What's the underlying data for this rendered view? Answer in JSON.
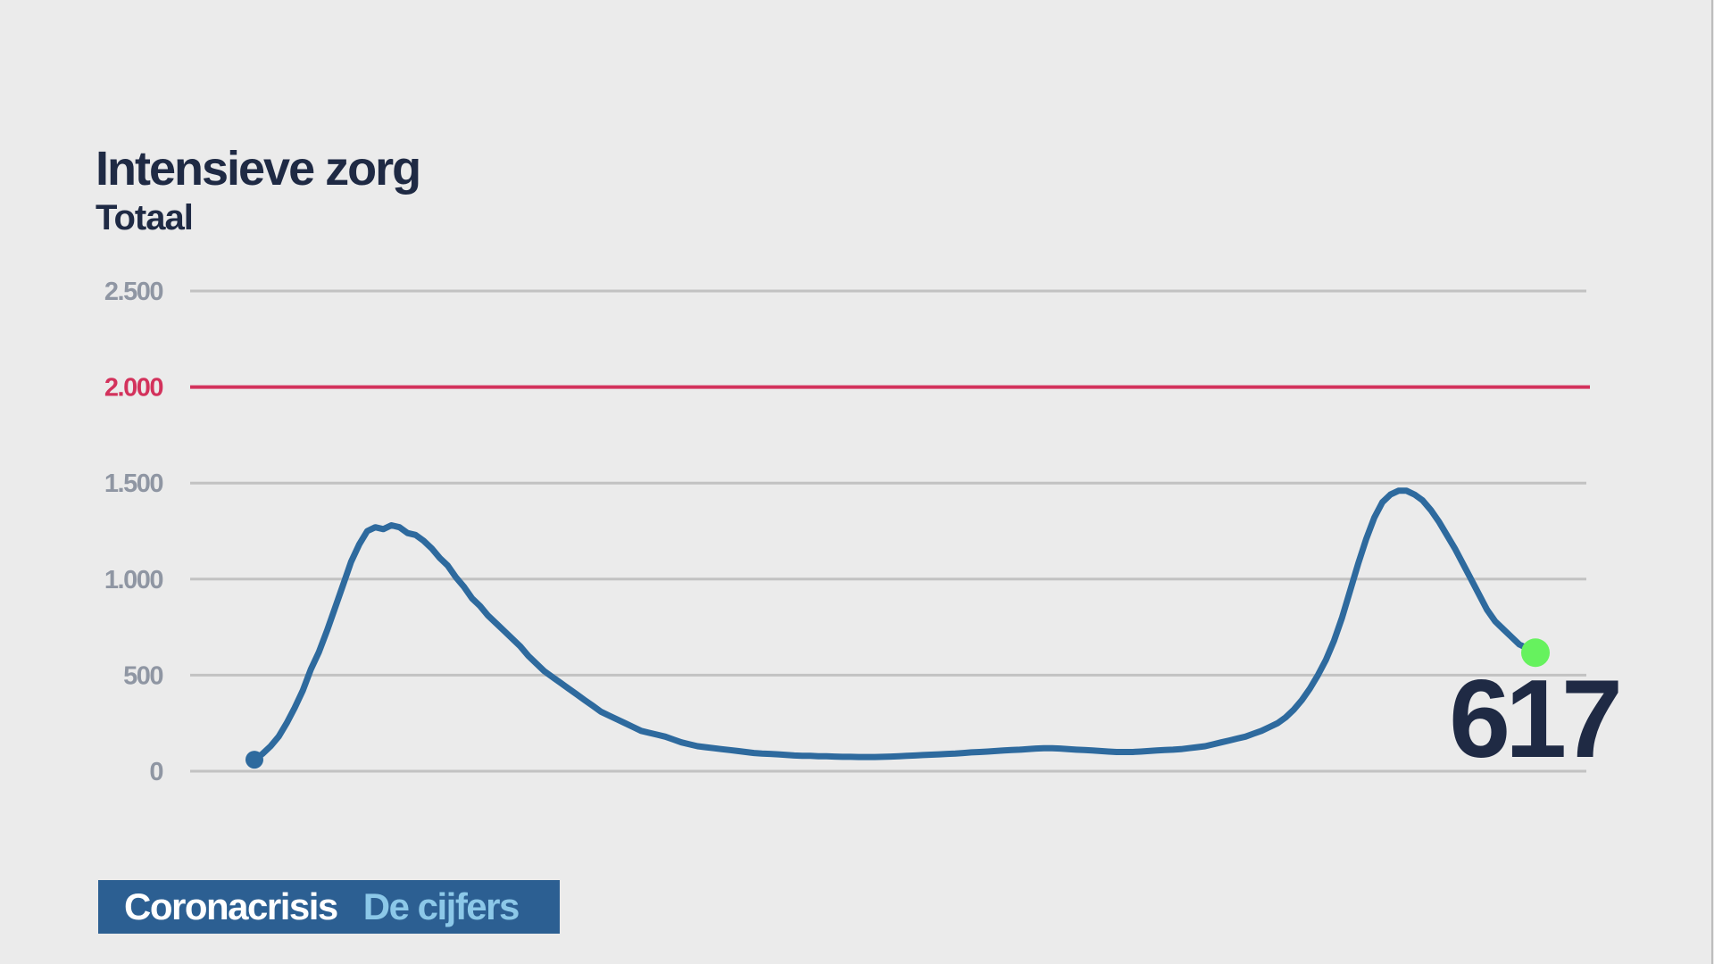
{
  "chart_data": {
    "type": "line",
    "title": "Intensieve zorg",
    "subtitle": "Totaal",
    "yticks": [
      {
        "value": 0,
        "label": "0"
      },
      {
        "value": 500,
        "label": "500"
      },
      {
        "value": 1000,
        "label": "1.000"
      },
      {
        "value": 1500,
        "label": "1.500"
      },
      {
        "value": 2000,
        "label": "2.000",
        "highlight": true
      },
      {
        "value": 2500,
        "label": "2.500"
      }
    ],
    "ylim": [
      0,
      2500
    ],
    "threshold": 2000,
    "grid": true,
    "xlabel": "",
    "ylabel": "",
    "series": [
      {
        "values": [
          60,
          90,
          130,
          180,
          250,
          330,
          420,
          530,
          620,
          730,
          850,
          970,
          1090,
          1180,
          1250,
          1270,
          1260,
          1280,
          1270,
          1240,
          1230,
          1200,
          1160,
          1110,
          1070,
          1010,
          960,
          900,
          860,
          810,
          770,
          730,
          690,
          650,
          600,
          560,
          520,
          490,
          460,
          430,
          400,
          370,
          340,
          310,
          290,
          270,
          250,
          230,
          210,
          200,
          190,
          180,
          165,
          150,
          140,
          130,
          125,
          120,
          115,
          110,
          105,
          100,
          95,
          92,
          90,
          88,
          85,
          82,
          80,
          80,
          78,
          78,
          76,
          75,
          75,
          74,
          74,
          74,
          75,
          76,
          78,
          80,
          82,
          84,
          86,
          88,
          90,
          92,
          95,
          98,
          100,
          102,
          105,
          108,
          110,
          112,
          115,
          118,
          120,
          120,
          118,
          115,
          112,
          110,
          108,
          105,
          102,
          100,
          100,
          100,
          102,
          105,
          108,
          110,
          112,
          115,
          120,
          125,
          130,
          140,
          150,
          160,
          170,
          180,
          195,
          210,
          230,
          250,
          280,
          320,
          370,
          430,
          500,
          580,
          680,
          800,
          940,
          1080,
          1210,
          1320,
          1400,
          1440,
          1460,
          1460,
          1440,
          1410,
          1360,
          1300,
          1230,
          1160,
          1080,
          1000,
          920,
          840,
          780,
          740,
          700,
          660,
          640,
          617
        ]
      }
    ],
    "last_value": 617,
    "last_value_label": "617",
    "colors": {
      "background": "#ebebeb",
      "line": "#2e6a9e",
      "threshold": "#d3325c",
      "grid": "#c2c2c2",
      "tick_label": "#8f96a3",
      "title": "#1f2a44",
      "endpoint": "#66f25e"
    }
  },
  "banner": {
    "part1": "Coronacrisis",
    "part2": "De cijfers",
    "bg_color": "#2c5f92",
    "part1_color": "#ffffff",
    "part2_color": "#8cc8e8"
  }
}
